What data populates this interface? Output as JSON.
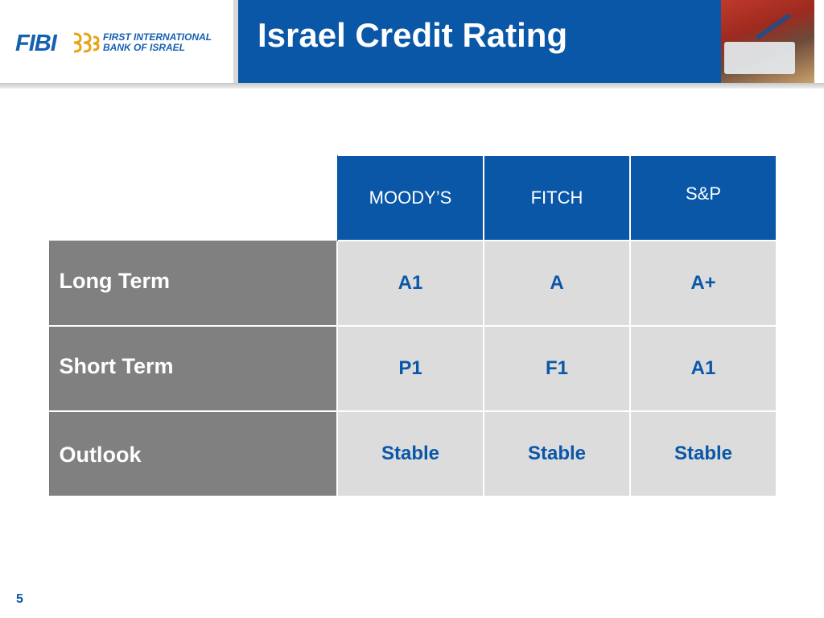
{
  "header": {
    "logo_text": "FIBI",
    "logo_name_line1": "FIRST INTERNATIONAL",
    "logo_name_line2": "BANK OF ISRAEL",
    "title": "Israel Credit Rating",
    "photo_icon": "paint-box-photo",
    "brand_color": "#0a57a8"
  },
  "table": {
    "columns": [
      "MOODY’S",
      "FITCH",
      "S&P"
    ],
    "rows": [
      {
        "label": "Long Term",
        "values": [
          "A1",
          "A",
          "A+"
        ]
      },
      {
        "label": "Short Term",
        "values": [
          "P1",
          "F1",
          "A1"
        ]
      },
      {
        "label": "Outlook",
        "values": [
          "Stable",
          "Stable",
          "Stable"
        ]
      }
    ],
    "header_color": "#0a57a8",
    "row_label_color": "#808080",
    "cell_color": "#dcdcdc"
  },
  "footer": {
    "page_number": "5"
  }
}
